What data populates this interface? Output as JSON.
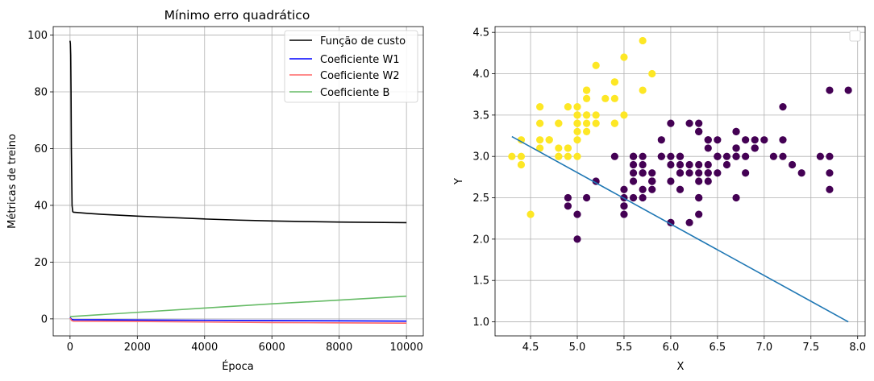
{
  "chart_data": [
    {
      "type": "line",
      "title": "Mínimo erro quadrático",
      "xlabel": "Época",
      "ylabel": "Métricas de treino",
      "xlim": [
        -500,
        10500
      ],
      "ylim": [
        -6,
        103
      ],
      "xticks": [
        0,
        2000,
        4000,
        6000,
        8000,
        10000
      ],
      "yticks": [
        0,
        20,
        40,
        60,
        80,
        100
      ],
      "grid": true,
      "legend_position": "top-right",
      "series": [
        {
          "name": "Função de custo",
          "color": "#000000",
          "x": [
            0,
            10,
            20,
            30,
            40,
            60,
            80,
            100,
            500,
            1000,
            2000,
            3000,
            4000,
            5000,
            6000,
            7000,
            8000,
            9000,
            10000
          ],
          "y": [
            98,
            97,
            93,
            80,
            60,
            40,
            37.8,
            37.6,
            37.2,
            36.8,
            36.2,
            35.7,
            35.2,
            34.8,
            34.5,
            34.3,
            34.1,
            34.0,
            33.9
          ]
        },
        {
          "name": "Coeficiente W1",
          "color": "#0000ff",
          "x": [
            0,
            50,
            100,
            2000,
            4000,
            6000,
            8000,
            10000
          ],
          "y": [
            0.5,
            -0.2,
            -0.3,
            -0.4,
            -0.5,
            -0.6,
            -0.7,
            -0.8
          ]
        },
        {
          "name": "Coeficiente W2",
          "color": "#ff6666",
          "x": [
            0,
            50,
            100,
            2000,
            4000,
            6000,
            8000,
            10000
          ],
          "y": [
            0.3,
            -0.6,
            -0.8,
            -0.9,
            -1.1,
            -1.3,
            -1.4,
            -1.5
          ]
        },
        {
          "name": "Coeficiente B",
          "color": "#66bb66",
          "x": [
            0,
            2000,
            4000,
            6000,
            8000,
            10000
          ],
          "y": [
            0.8,
            2.3,
            3.8,
            5.3,
            6.6,
            8.0
          ]
        }
      ]
    },
    {
      "type": "scatter",
      "title": "",
      "xlabel": "X",
      "ylabel": "Y",
      "xlim": [
        4.12,
        8.08
      ],
      "ylim": [
        0.83,
        4.57
      ],
      "xticks": [
        4.5,
        5.0,
        5.5,
        6.0,
        6.5,
        7.0,
        7.5,
        8.0
      ],
      "yticks": [
        1.0,
        1.5,
        2.0,
        2.5,
        3.0,
        3.5,
        4.0,
        4.5
      ],
      "xtick_labels": [
        "4.5",
        "5.0",
        "5.5",
        "6.0",
        "6.5",
        "7.0",
        "7.5",
        "8.0"
      ],
      "ytick_labels": [
        "1.0",
        "1.5",
        "2.0",
        "2.5",
        "3.0",
        "3.5",
        "4.0",
        "4.5"
      ],
      "grid": true,
      "legend_position": "top-right",
      "class_colors": {
        "0": "#fde725",
        "1": "#440154"
      },
      "points_class0": [
        [
          5.1,
          3.5
        ],
        [
          4.9,
          3.0
        ],
        [
          4.7,
          3.2
        ],
        [
          4.6,
          3.1
        ],
        [
          5.0,
          3.6
        ],
        [
          5.4,
          3.9
        ],
        [
          4.6,
          3.4
        ],
        [
          5.0,
          3.4
        ],
        [
          4.4,
          2.9
        ],
        [
          4.9,
          3.1
        ],
        [
          5.4,
          3.7
        ],
        [
          4.8,
          3.4
        ],
        [
          4.8,
          3.0
        ],
        [
          4.3,
          3.0
        ],
        [
          5.8,
          4.0
        ],
        [
          5.7,
          4.4
        ],
        [
          5.4,
          3.9
        ],
        [
          5.1,
          3.5
        ],
        [
          5.7,
          3.8
        ],
        [
          5.1,
          3.8
        ],
        [
          5.4,
          3.4
        ],
        [
          5.1,
          3.7
        ],
        [
          4.6,
          3.6
        ],
        [
          5.1,
          3.3
        ],
        [
          4.8,
          3.4
        ],
        [
          5.0,
          3.0
        ],
        [
          5.0,
          3.4
        ],
        [
          5.2,
          3.5
        ],
        [
          5.2,
          3.4
        ],
        [
          4.7,
          3.2
        ],
        [
          4.8,
          3.1
        ],
        [
          5.4,
          3.4
        ],
        [
          5.2,
          4.1
        ],
        [
          5.5,
          4.2
        ],
        [
          4.9,
          3.1
        ],
        [
          5.0,
          3.2
        ],
        [
          5.5,
          3.5
        ],
        [
          4.9,
          3.6
        ],
        [
          4.4,
          3.0
        ],
        [
          5.1,
          3.4
        ],
        [
          5.0,
          3.5
        ],
        [
          4.5,
          2.3
        ],
        [
          4.4,
          3.2
        ],
        [
          5.0,
          3.5
        ],
        [
          5.1,
          3.8
        ],
        [
          4.8,
          3.0
        ],
        [
          5.1,
          3.8
        ],
        [
          4.6,
          3.2
        ],
        [
          5.3,
          3.7
        ],
        [
          5.0,
          3.3
        ]
      ],
      "points_class1": [
        [
          7.0,
          3.2
        ],
        [
          6.4,
          3.2
        ],
        [
          6.9,
          3.1
        ],
        [
          5.5,
          2.3
        ],
        [
          6.5,
          2.8
        ],
        [
          5.7,
          2.8
        ],
        [
          6.3,
          3.3
        ],
        [
          4.9,
          2.4
        ],
        [
          6.6,
          2.9
        ],
        [
          5.2,
          2.7
        ],
        [
          5.0,
          2.0
        ],
        [
          5.9,
          3.0
        ],
        [
          6.0,
          2.2
        ],
        [
          6.1,
          2.9
        ],
        [
          5.6,
          2.9
        ],
        [
          6.7,
          3.1
        ],
        [
          5.6,
          3.0
        ],
        [
          5.8,
          2.7
        ],
        [
          6.2,
          2.2
        ],
        [
          5.6,
          2.5
        ],
        [
          5.9,
          3.2
        ],
        [
          6.1,
          2.8
        ],
        [
          6.3,
          2.5
        ],
        [
          6.1,
          2.8
        ],
        [
          6.4,
          2.9
        ],
        [
          6.6,
          3.0
        ],
        [
          6.8,
          2.8
        ],
        [
          6.7,
          3.0
        ],
        [
          6.0,
          2.9
        ],
        [
          5.7,
          2.6
        ],
        [
          5.5,
          2.4
        ],
        [
          5.5,
          2.4
        ],
        [
          5.8,
          2.7
        ],
        [
          6.0,
          2.7
        ],
        [
          5.4,
          3.0
        ],
        [
          6.0,
          3.4
        ],
        [
          6.7,
          3.1
        ],
        [
          6.3,
          2.3
        ],
        [
          5.6,
          3.0
        ],
        [
          5.5,
          2.5
        ],
        [
          5.5,
          2.6
        ],
        [
          6.1,
          3.0
        ],
        [
          5.8,
          2.6
        ],
        [
          5.0,
          2.3
        ],
        [
          5.6,
          2.7
        ],
        [
          5.7,
          3.0
        ],
        [
          5.7,
          2.9
        ],
        [
          6.2,
          2.9
        ],
        [
          5.1,
          2.5
        ],
        [
          5.7,
          2.8
        ],
        [
          6.3,
          3.3
        ],
        [
          5.8,
          2.7
        ],
        [
          7.1,
          3.0
        ],
        [
          6.3,
          2.9
        ],
        [
          6.5,
          3.0
        ],
        [
          7.6,
          3.0
        ],
        [
          4.9,
          2.5
        ],
        [
          7.3,
          2.9
        ],
        [
          6.7,
          2.5
        ],
        [
          7.2,
          3.6
        ],
        [
          6.5,
          3.2
        ],
        [
          6.4,
          2.7
        ],
        [
          6.8,
          3.0
        ],
        [
          5.7,
          2.5
        ],
        [
          5.8,
          2.8
        ],
        [
          6.4,
          3.2
        ],
        [
          6.5,
          3.0
        ],
        [
          7.7,
          3.8
        ],
        [
          7.7,
          2.6
        ],
        [
          6.0,
          2.2
        ],
        [
          6.9,
          3.2
        ],
        [
          5.6,
          2.8
        ],
        [
          7.7,
          2.8
        ],
        [
          6.3,
          2.7
        ],
        [
          6.7,
          3.3
        ],
        [
          7.2,
          3.2
        ],
        [
          6.2,
          2.8
        ],
        [
          6.1,
          3.0
        ],
        [
          6.4,
          2.8
        ],
        [
          7.2,
          3.0
        ],
        [
          7.4,
          2.8
        ],
        [
          7.9,
          3.8
        ],
        [
          6.4,
          2.8
        ],
        [
          6.3,
          2.8
        ],
        [
          6.1,
          2.6
        ],
        [
          7.7,
          3.0
        ],
        [
          6.3,
          3.4
        ],
        [
          6.4,
          3.1
        ],
        [
          6.0,
          3.0
        ],
        [
          6.9,
          3.1
        ],
        [
          6.7,
          3.1
        ],
        [
          6.9,
          3.1
        ],
        [
          5.8,
          2.7
        ],
        [
          6.8,
          3.2
        ],
        [
          6.7,
          3.3
        ],
        [
          6.7,
          3.0
        ],
        [
          6.3,
          2.5
        ],
        [
          6.5,
          3.0
        ],
        [
          6.2,
          3.4
        ],
        [
          5.9,
          3.0
        ]
      ],
      "decision_line": {
        "color": "#1f77b4",
        "x": [
          4.3,
          7.9
        ],
        "y": [
          3.24,
          1.0
        ]
      }
    }
  ]
}
